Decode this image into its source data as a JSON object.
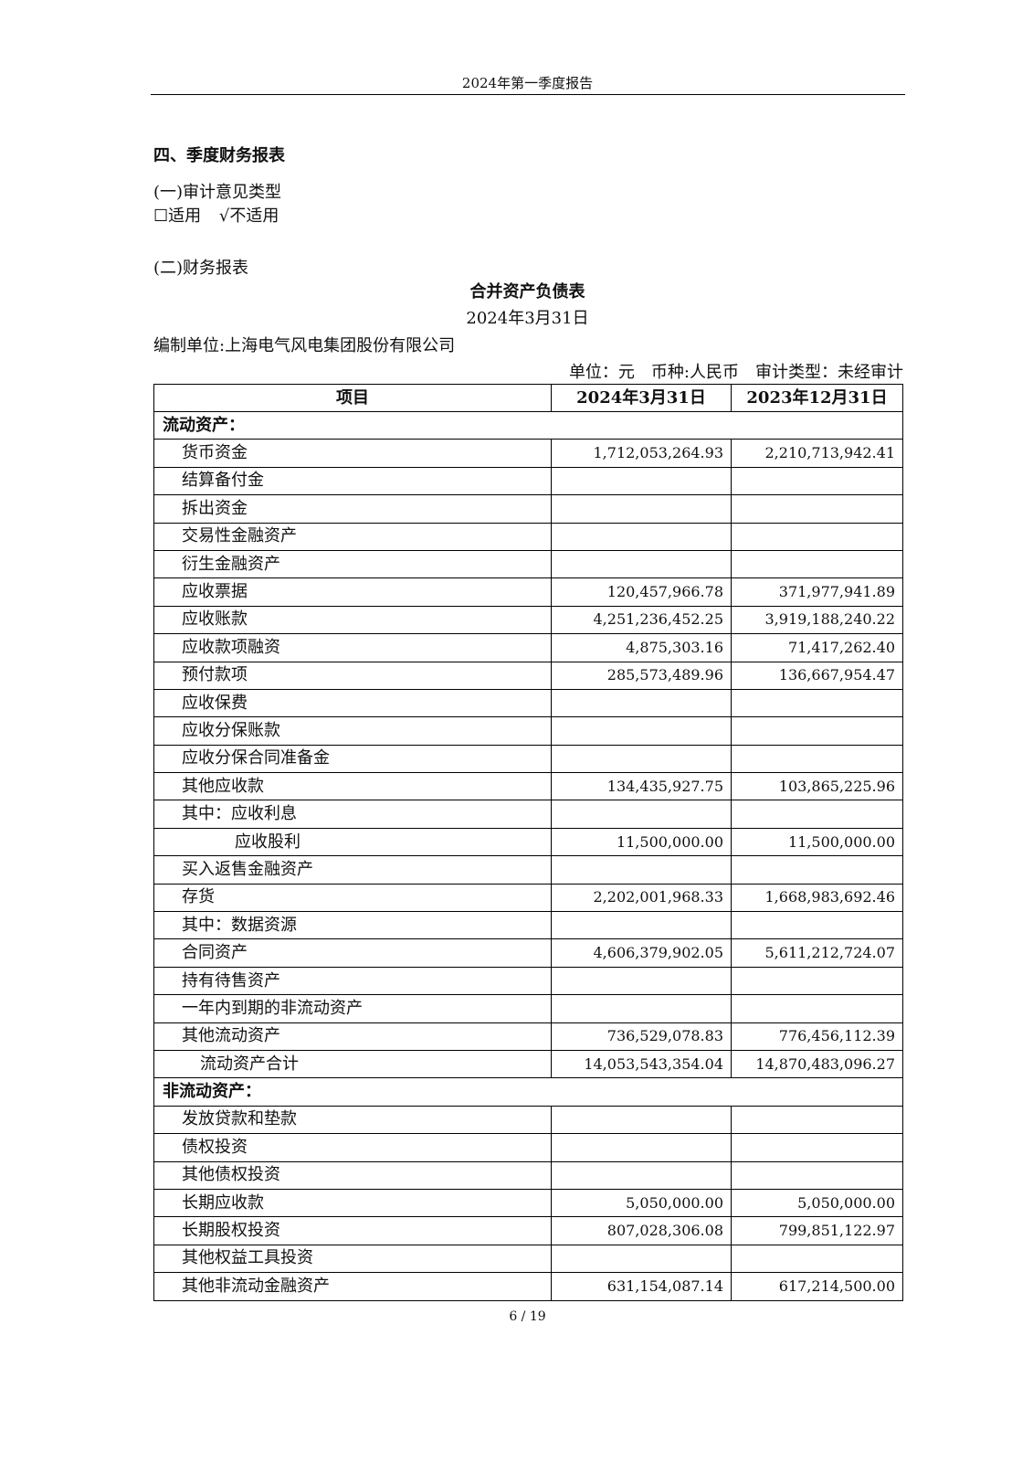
{
  "header": "2024年第一季度报告",
  "section": "四、季度财务报表",
  "audit_opinion": {
    "title": "(一)审计意见类型",
    "applicable": "适用",
    "not_applicable": "不适用",
    "checked": "not_applicable"
  },
  "statements_title": "(二)财务报表",
  "report": {
    "title": "合并资产负债表",
    "date": "2024年3月31日",
    "company": "编制单位:上海电气风电集团股份有限公司",
    "unit_line": "单位：元　币种:人民币　审计类型：未经审计"
  },
  "table": {
    "headers": [
      "项目",
      "2024年3月31日",
      "2023年12月31日"
    ],
    "rows": [
      {
        "label": "流动资产：",
        "type": "section"
      },
      {
        "label": "货币资金",
        "v1": "1,712,053,264.93",
        "v2": "2,210,713,942.41",
        "indent": 1
      },
      {
        "label": "结算备付金",
        "v1": "",
        "v2": "",
        "indent": 1
      },
      {
        "label": "拆出资金",
        "v1": "",
        "v2": "",
        "indent": 1
      },
      {
        "label": "交易性金融资产",
        "v1": "",
        "v2": "",
        "indent": 1
      },
      {
        "label": "衍生金融资产",
        "v1": "",
        "v2": "",
        "indent": 1
      },
      {
        "label": "应收票据",
        "v1": "120,457,966.78",
        "v2": "371,977,941.89",
        "indent": 1
      },
      {
        "label": "应收账款",
        "v1": "4,251,236,452.25",
        "v2": "3,919,188,240.22",
        "indent": 1
      },
      {
        "label": "应收款项融资",
        "v1": "4,875,303.16",
        "v2": "71,417,262.40",
        "indent": 1
      },
      {
        "label": "预付款项",
        "v1": "285,573,489.96",
        "v2": "136,667,954.47",
        "indent": 1
      },
      {
        "label": "应收保费",
        "v1": "",
        "v2": "",
        "indent": 1
      },
      {
        "label": "应收分保账款",
        "v1": "",
        "v2": "",
        "indent": 1
      },
      {
        "label": "应收分保合同准备金",
        "v1": "",
        "v2": "",
        "indent": 1
      },
      {
        "label": "其他应收款",
        "v1": "134,435,927.75",
        "v2": "103,865,225.96",
        "indent": 1
      },
      {
        "label": "其中：应收利息",
        "v1": "",
        "v2": "",
        "indent": 1
      },
      {
        "label": "应收股利",
        "v1": "11,500,000.00",
        "v2": "11,500,000.00",
        "indent": 3
      },
      {
        "label": "买入返售金融资产",
        "v1": "",
        "v2": "",
        "indent": 1
      },
      {
        "label": "存货",
        "v1": "2,202,001,968.33",
        "v2": "1,668,983,692.46",
        "indent": 1
      },
      {
        "label": "其中：数据资源",
        "v1": "",
        "v2": "",
        "indent": 1
      },
      {
        "label": "合同资产",
        "v1": "4,606,379,902.05",
        "v2": "5,611,212,724.07",
        "indent": 1
      },
      {
        "label": "持有待售资产",
        "v1": "",
        "v2": "",
        "indent": 1
      },
      {
        "label": "一年内到期的非流动资产",
        "v1": "",
        "v2": "",
        "indent": 1
      },
      {
        "label": "其他流动资产",
        "v1": "736,529,078.83",
        "v2": "776,456,112.39",
        "indent": 1
      },
      {
        "label": "流动资产合计",
        "v1": "14,053,543,354.04",
        "v2": "14,870,483,096.27",
        "indent": 2
      },
      {
        "label": "非流动资产：",
        "type": "section"
      },
      {
        "label": "发放贷款和垫款",
        "v1": "",
        "v2": "",
        "indent": 1
      },
      {
        "label": "债权投资",
        "v1": "",
        "v2": "",
        "indent": 1
      },
      {
        "label": "其他债权投资",
        "v1": "",
        "v2": "",
        "indent": 1
      },
      {
        "label": "长期应收款",
        "v1": "5,050,000.00",
        "v2": "5,050,000.00",
        "indent": 1
      },
      {
        "label": "长期股权投资",
        "v1": "807,028,306.08",
        "v2": "799,851,122.97",
        "indent": 1
      },
      {
        "label": "其他权益工具投资",
        "v1": "",
        "v2": "",
        "indent": 1
      },
      {
        "label": "其他非流动金融资产",
        "v1": "631,154,087.14",
        "v2": "617,214,500.00",
        "indent": 1
      }
    ]
  },
  "page_number": "6 / 19"
}
